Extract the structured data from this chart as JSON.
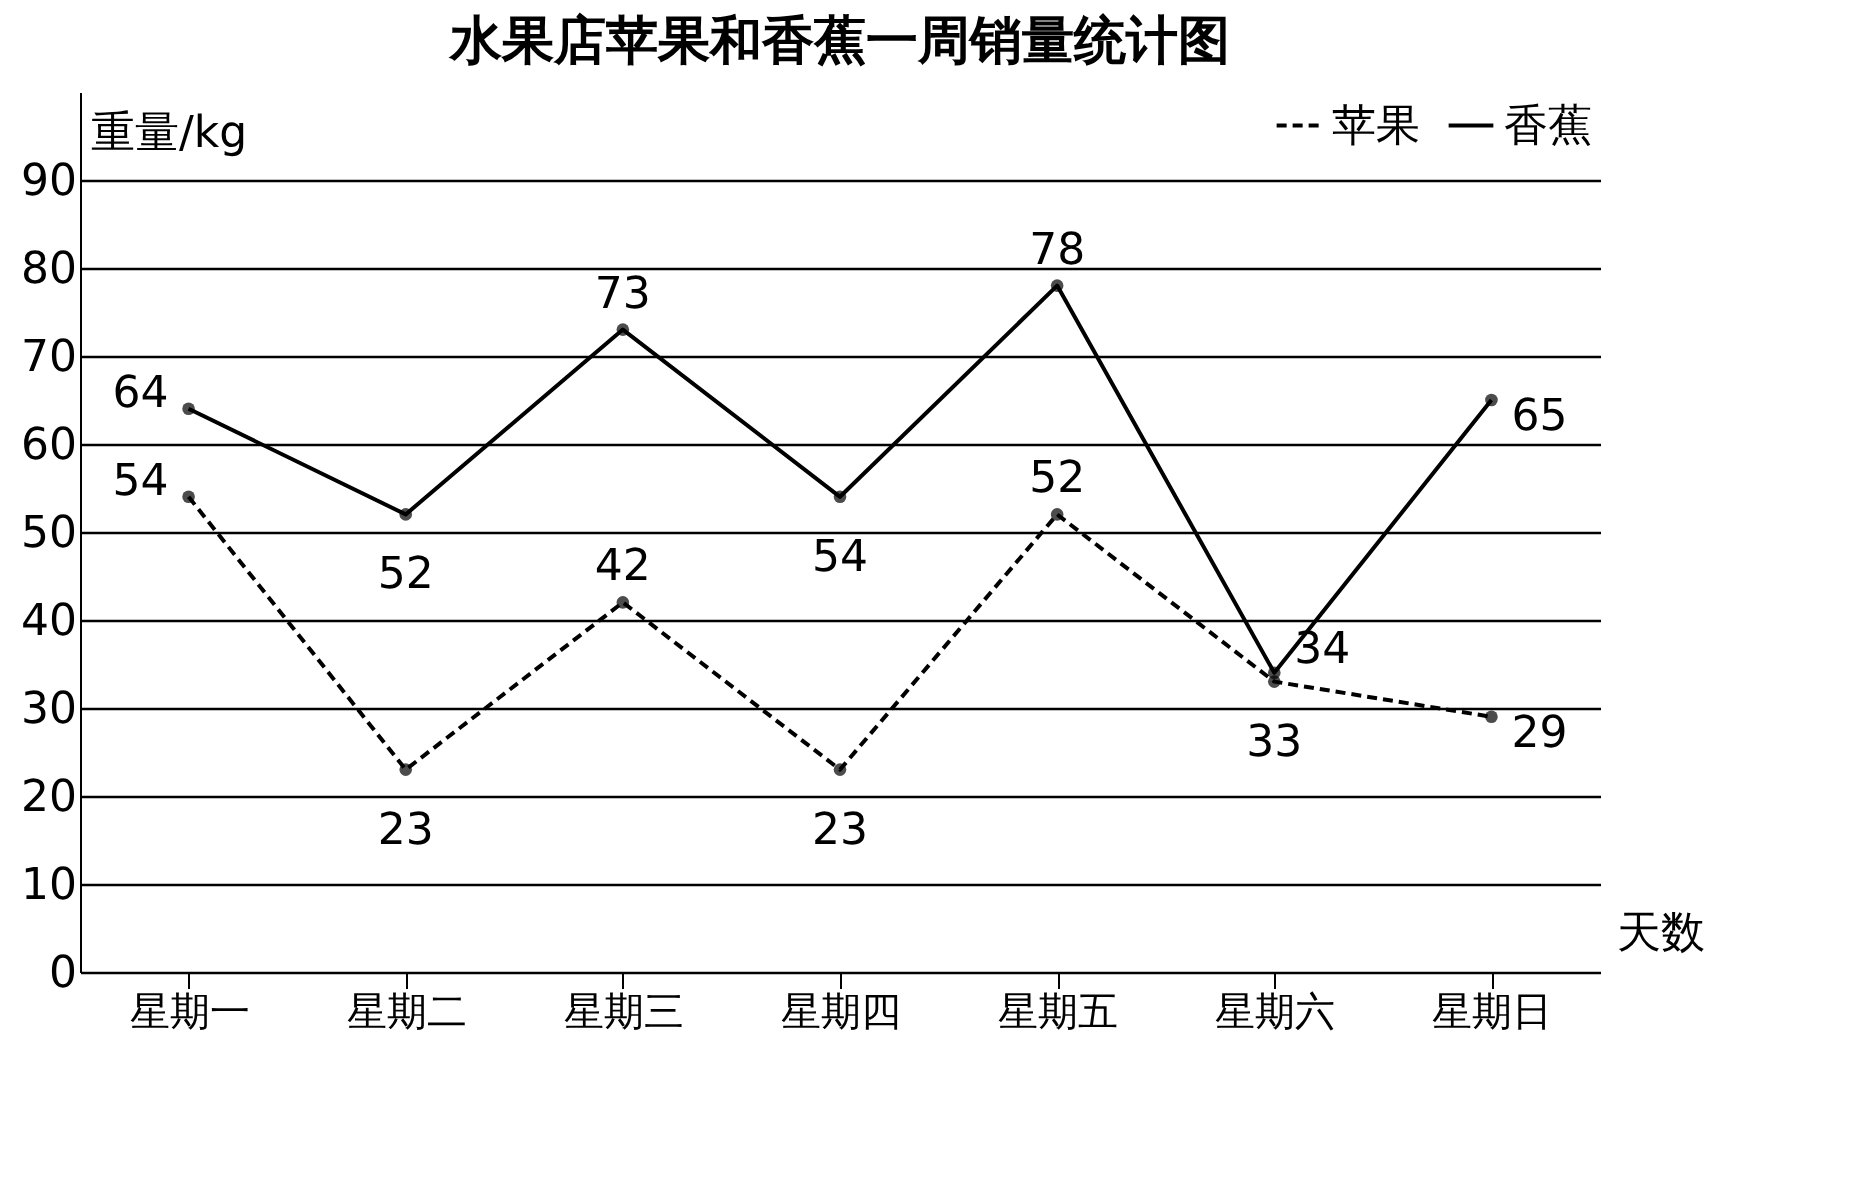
{
  "chart_data": {
    "type": "line",
    "title": "水果店苹果和香蕉一周销量统计图",
    "xlabel": "天数",
    "ylabel": "重量/kg",
    "categories": [
      "星期一",
      "星期二",
      "星期三",
      "星期四",
      "星期五",
      "星期六",
      "星期日"
    ],
    "series": [
      {
        "name": "苹果",
        "color": "#000000",
        "line_style": "dashed",
        "values": [
          54,
          23,
          42,
          23,
          52,
          33,
          29
        ]
      },
      {
        "name": "香蕉",
        "color": "#000000",
        "line_style": "solid",
        "values": [
          64,
          52,
          73,
          54,
          78,
          34,
          65
        ]
      }
    ],
    "ylim": [
      0,
      100
    ],
    "yticks": [
      0,
      10,
      20,
      30,
      40,
      50,
      60,
      70,
      80,
      90
    ],
    "grid": "y",
    "legend": "top right",
    "marker": "circle",
    "data_labels": true
  }
}
